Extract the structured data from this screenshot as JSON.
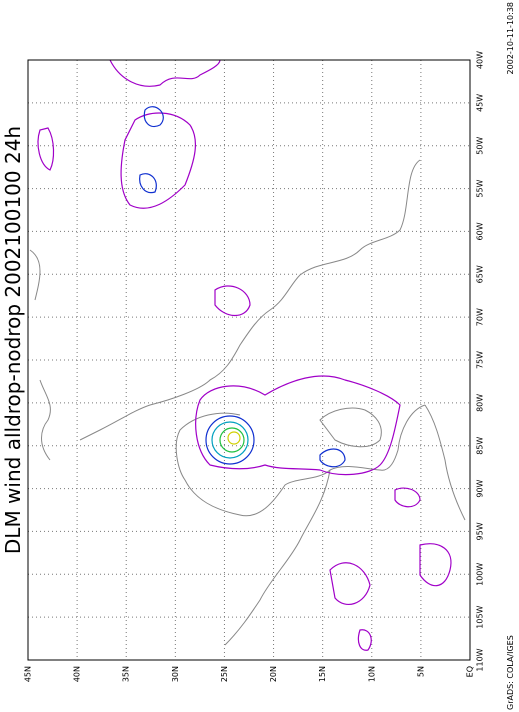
{
  "title": "DLM wind alldrop-nodrop 2002100100 24h",
  "lat_labels": [
    "45N",
    "40N",
    "35N",
    "30N",
    "25N",
    "20N",
    "15N",
    "10N",
    "5N",
    "EQ"
  ],
  "lon_labels": [
    "40W",
    "45W",
    "50W",
    "55W",
    "60W",
    "65W",
    "70W",
    "75W",
    "80W",
    "85W",
    "90W",
    "95W",
    "100W",
    "105W",
    "110W"
  ],
  "footer": "GrADS: COLA/IGES",
  "timestamp": "2002-10-11-10:38"
}
